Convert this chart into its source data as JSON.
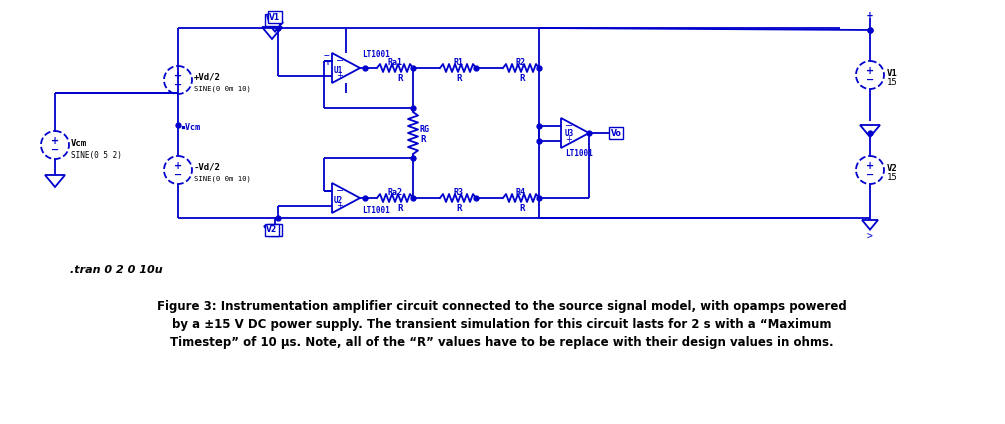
{
  "bg_color": "#ffffff",
  "bc": "#0000cd",
  "bk": "#000000",
  "fig_width": 10.05,
  "fig_height": 4.24,
  "dpi": 100,
  "caption_line1": "Figure 3: Instrumentation amplifier circuit connected to the source signal model, with opamps powered",
  "caption_line2": "by a ±15 V DC power supply. The transient simulation for this circuit lasts for 2 s with a “Maximum",
  "caption_line3": "Timestep” of 10 µs. Note, all of the “R” values have to be replace with their design values in ohms.",
  "spice_cmd": ".tran 0 2 0 10u",
  "lw": 1.3,
  "res_lw": 1.3
}
